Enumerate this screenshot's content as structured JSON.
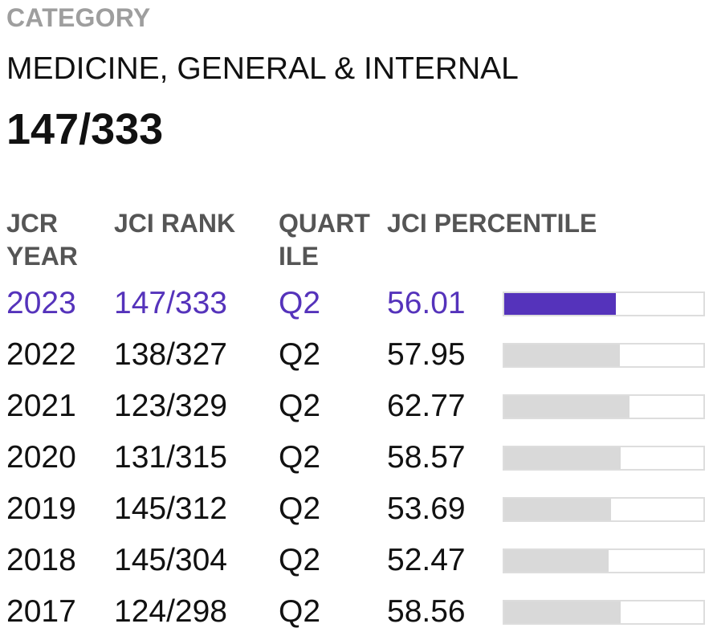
{
  "category": {
    "label": "CATEGORY",
    "name": "MEDICINE, GENERAL & INTERNAL",
    "rank": "147/333"
  },
  "table": {
    "headers": {
      "year": "JCR YEAR",
      "rank": "JCI RANK",
      "quartile": "QUART ILE",
      "percentile": "JCI PERCENTILE"
    },
    "accent_color": "#5533bb",
    "bar_color": "#d9d9d9",
    "rows": [
      {
        "year": "2023",
        "rank": "147/333",
        "quartile": "Q2",
        "percentile": "56.01",
        "percentile_value": 56.01,
        "current": true
      },
      {
        "year": "2022",
        "rank": "138/327",
        "quartile": "Q2",
        "percentile": "57.95",
        "percentile_value": 57.95,
        "current": false
      },
      {
        "year": "2021",
        "rank": "123/329",
        "quartile": "Q2",
        "percentile": "62.77",
        "percentile_value": 62.77,
        "current": false
      },
      {
        "year": "2020",
        "rank": "131/315",
        "quartile": "Q2",
        "percentile": "58.57",
        "percentile_value": 58.57,
        "current": false
      },
      {
        "year": "2019",
        "rank": "145/312",
        "quartile": "Q2",
        "percentile": "53.69",
        "percentile_value": 53.69,
        "current": false
      },
      {
        "year": "2018",
        "rank": "145/304",
        "quartile": "Q2",
        "percentile": "52.47",
        "percentile_value": 52.47,
        "current": false
      },
      {
        "year": "2017",
        "rank": "124/298",
        "quartile": "Q2",
        "percentile": "58.56",
        "percentile_value": 58.56,
        "current": false
      }
    ]
  }
}
